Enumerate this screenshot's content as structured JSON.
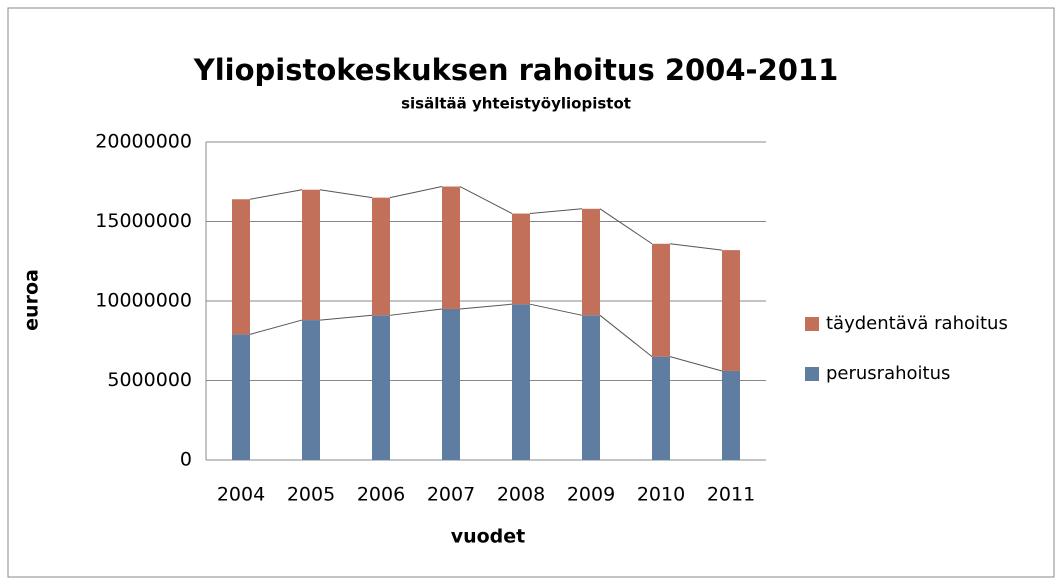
{
  "chart_data": {
    "type": "stacked_bar",
    "title": "Yliopistokeskuksen rahoitus 2004-2011",
    "subtitle": "sisältää yhteistyöyliopistot",
    "x_label": "vuodet",
    "y_label": "euroa",
    "categories": [
      "2004",
      "2005",
      "2006",
      "2007",
      "2008",
      "2009",
      "2010",
      "2011"
    ],
    "series": [
      {
        "name": "perusrahoitus",
        "color": "#5f7da0",
        "values": [
          7900000,
          8800000,
          9100000,
          9500000,
          9800000,
          9100000,
          6500000,
          5600000
        ]
      },
      {
        "name": "täydentävä rahoitus",
        "color": "#c3705a",
        "values": [
          8500000,
          8200000,
          7400000,
          7700000,
          5700000,
          6700000,
          7100000,
          7600000
        ]
      }
    ],
    "ylim": [
      0,
      20000000
    ],
    "yticks": [
      0,
      5000000,
      10000000,
      15000000,
      20000000
    ],
    "grid": true,
    "series_lines": true,
    "legend": "right"
  }
}
